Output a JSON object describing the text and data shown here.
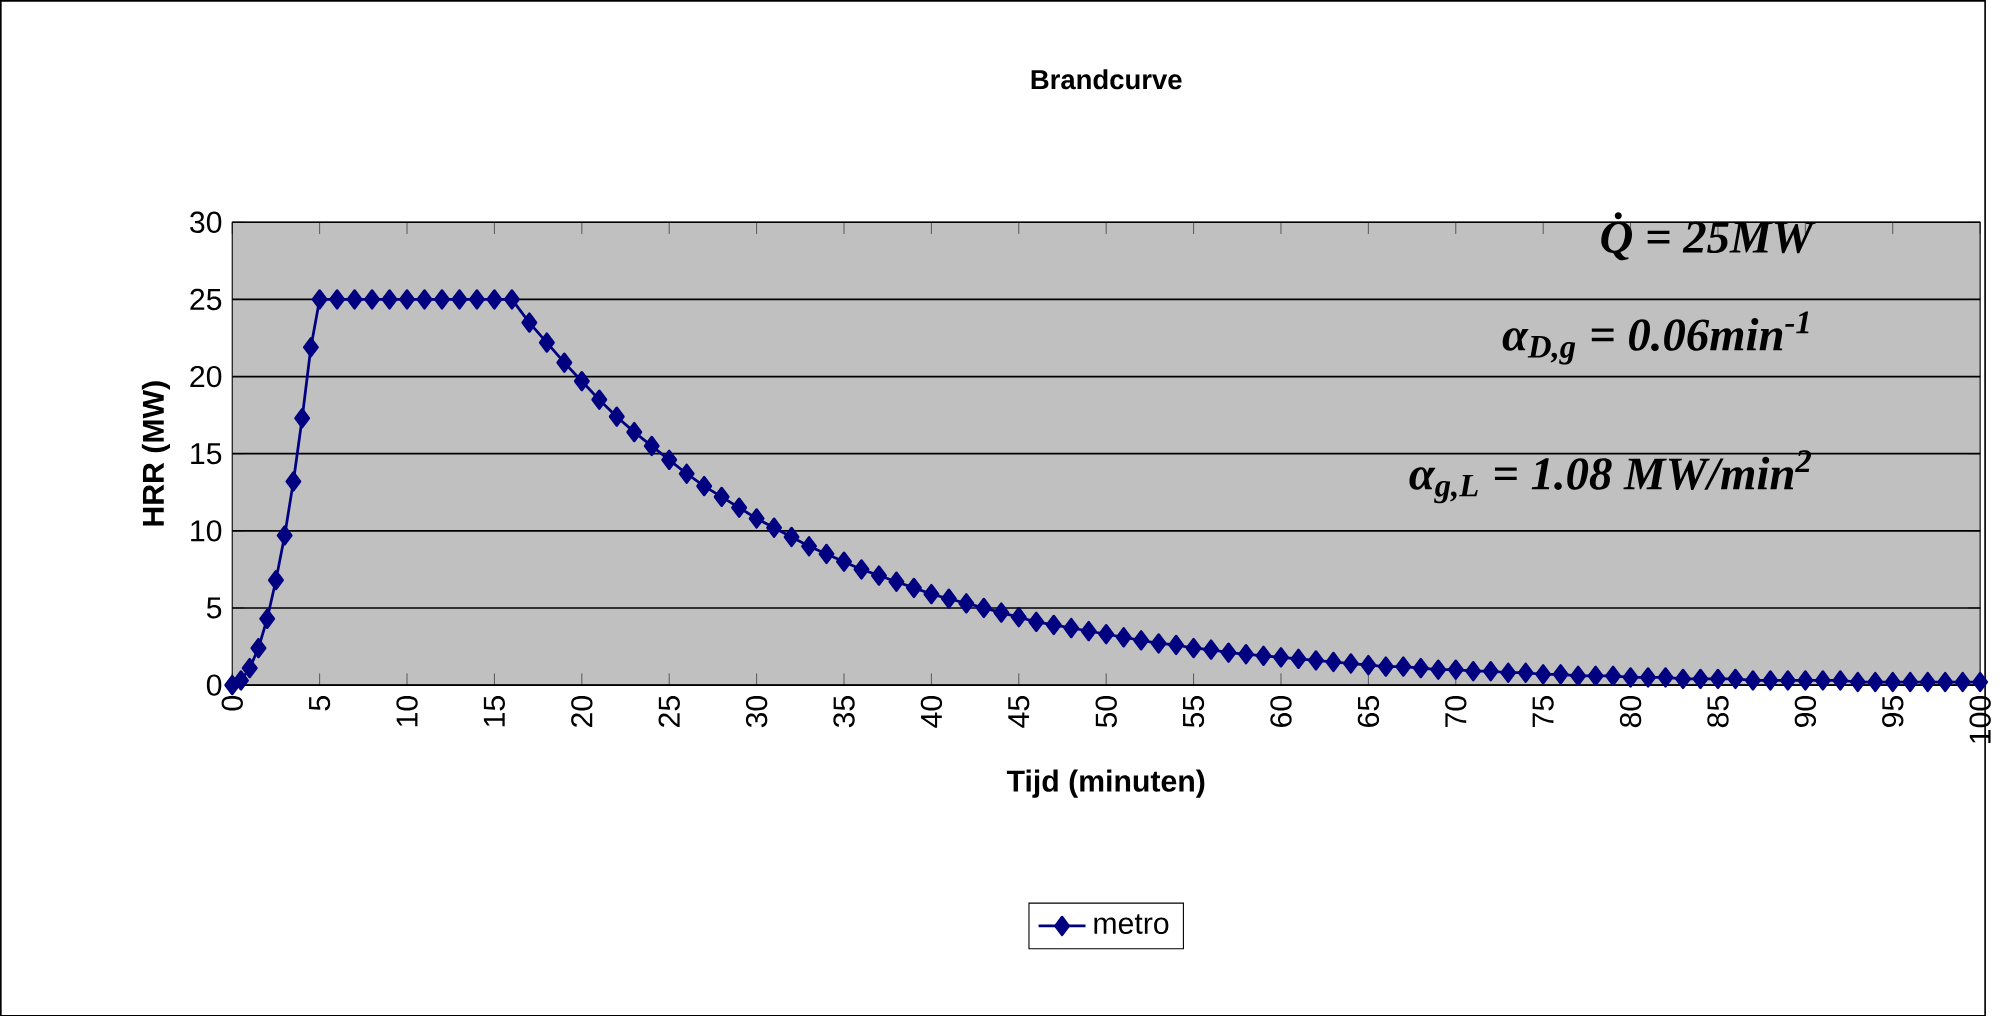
{
  "chart_data": {
    "type": "line",
    "title": "Brandcurve",
    "xlabel": "Tijd (minuten)",
    "ylabel": "HRR (MW)",
    "annotations": [
      "Q̇ = 25MW",
      "α$_{D,g}$ = 0.06min$^{-1}$",
      "α$_{g,L}$ = 1.08 MW/min$^{2}$"
    ],
    "x": [
      0,
      0.5,
      1,
      1.5,
      2,
      2.5,
      3,
      3.5,
      4,
      4.5,
      5,
      6,
      7,
      8,
      9,
      10,
      11,
      12,
      13,
      14,
      15,
      16,
      17,
      18,
      19,
      20,
      21,
      22,
      23,
      24,
      25,
      26,
      27,
      28,
      29,
      30,
      31,
      32,
      33,
      34,
      35,
      36,
      37,
      38,
      39,
      40,
      41,
      42,
      43,
      44,
      45,
      46,
      47,
      48,
      49,
      50,
      51,
      52,
      53,
      54,
      55,
      56,
      57,
      58,
      59,
      60,
      61,
      62,
      63,
      64,
      65,
      66,
      67,
      68,
      69,
      70,
      71,
      72,
      73,
      74,
      75,
      76,
      77,
      78,
      79,
      80,
      81,
      82,
      83,
      84,
      85,
      86,
      87,
      88,
      89,
      90,
      91,
      92,
      93,
      94,
      95,
      96,
      97,
      98,
      99,
      100
    ],
    "series": [
      {
        "name": "metro",
        "color": "#000080",
        "values": [
          0,
          0.3,
          1.1,
          2.4,
          4.3,
          6.8,
          9.7,
          13.2,
          17.3,
          21.9,
          25,
          25,
          25,
          25,
          25,
          25,
          25,
          25,
          25,
          25,
          25,
          25,
          23.5,
          22.2,
          20.9,
          19.7,
          18.5,
          17.4,
          16.4,
          15.5,
          14.6,
          13.7,
          12.9,
          12.2,
          11.5,
          10.8,
          10.2,
          9.6,
          9.0,
          8.5,
          8.0,
          7.5,
          7.1,
          6.7,
          6.3,
          5.9,
          5.6,
          5.3,
          5.0,
          4.7,
          4.4,
          4.1,
          3.9,
          3.7,
          3.5,
          3.3,
          3.1,
          2.9,
          2.7,
          2.6,
          2.4,
          2.3,
          2.1,
          2.0,
          1.9,
          1.8,
          1.7,
          1.6,
          1.5,
          1.4,
          1.3,
          1.2,
          1.2,
          1.1,
          1.0,
          1.0,
          0.9,
          0.9,
          0.8,
          0.8,
          0.7,
          0.7,
          0.6,
          0.6,
          0.6,
          0.5,
          0.5,
          0.5,
          0.4,
          0.4,
          0.4,
          0.4,
          0.3,
          0.3,
          0.3,
          0.3,
          0.3,
          0.3,
          0.2,
          0.2,
          0.2,
          0.2,
          0.2,
          0.2,
          0.2,
          0.2
        ]
      }
    ],
    "xlim": [
      0,
      100
    ],
    "xticks": [
      0,
      5,
      10,
      15,
      20,
      25,
      30,
      35,
      40,
      45,
      50,
      55,
      60,
      65,
      70,
      75,
      80,
      85,
      90,
      95,
      100
    ],
    "ylim": [
      0,
      30
    ],
    "yticks": [
      0,
      5,
      10,
      15,
      20,
      25,
      30
    ],
    "grid": "y",
    "legend": "bottom",
    "marker": "diamond",
    "line_style": "solid"
  }
}
